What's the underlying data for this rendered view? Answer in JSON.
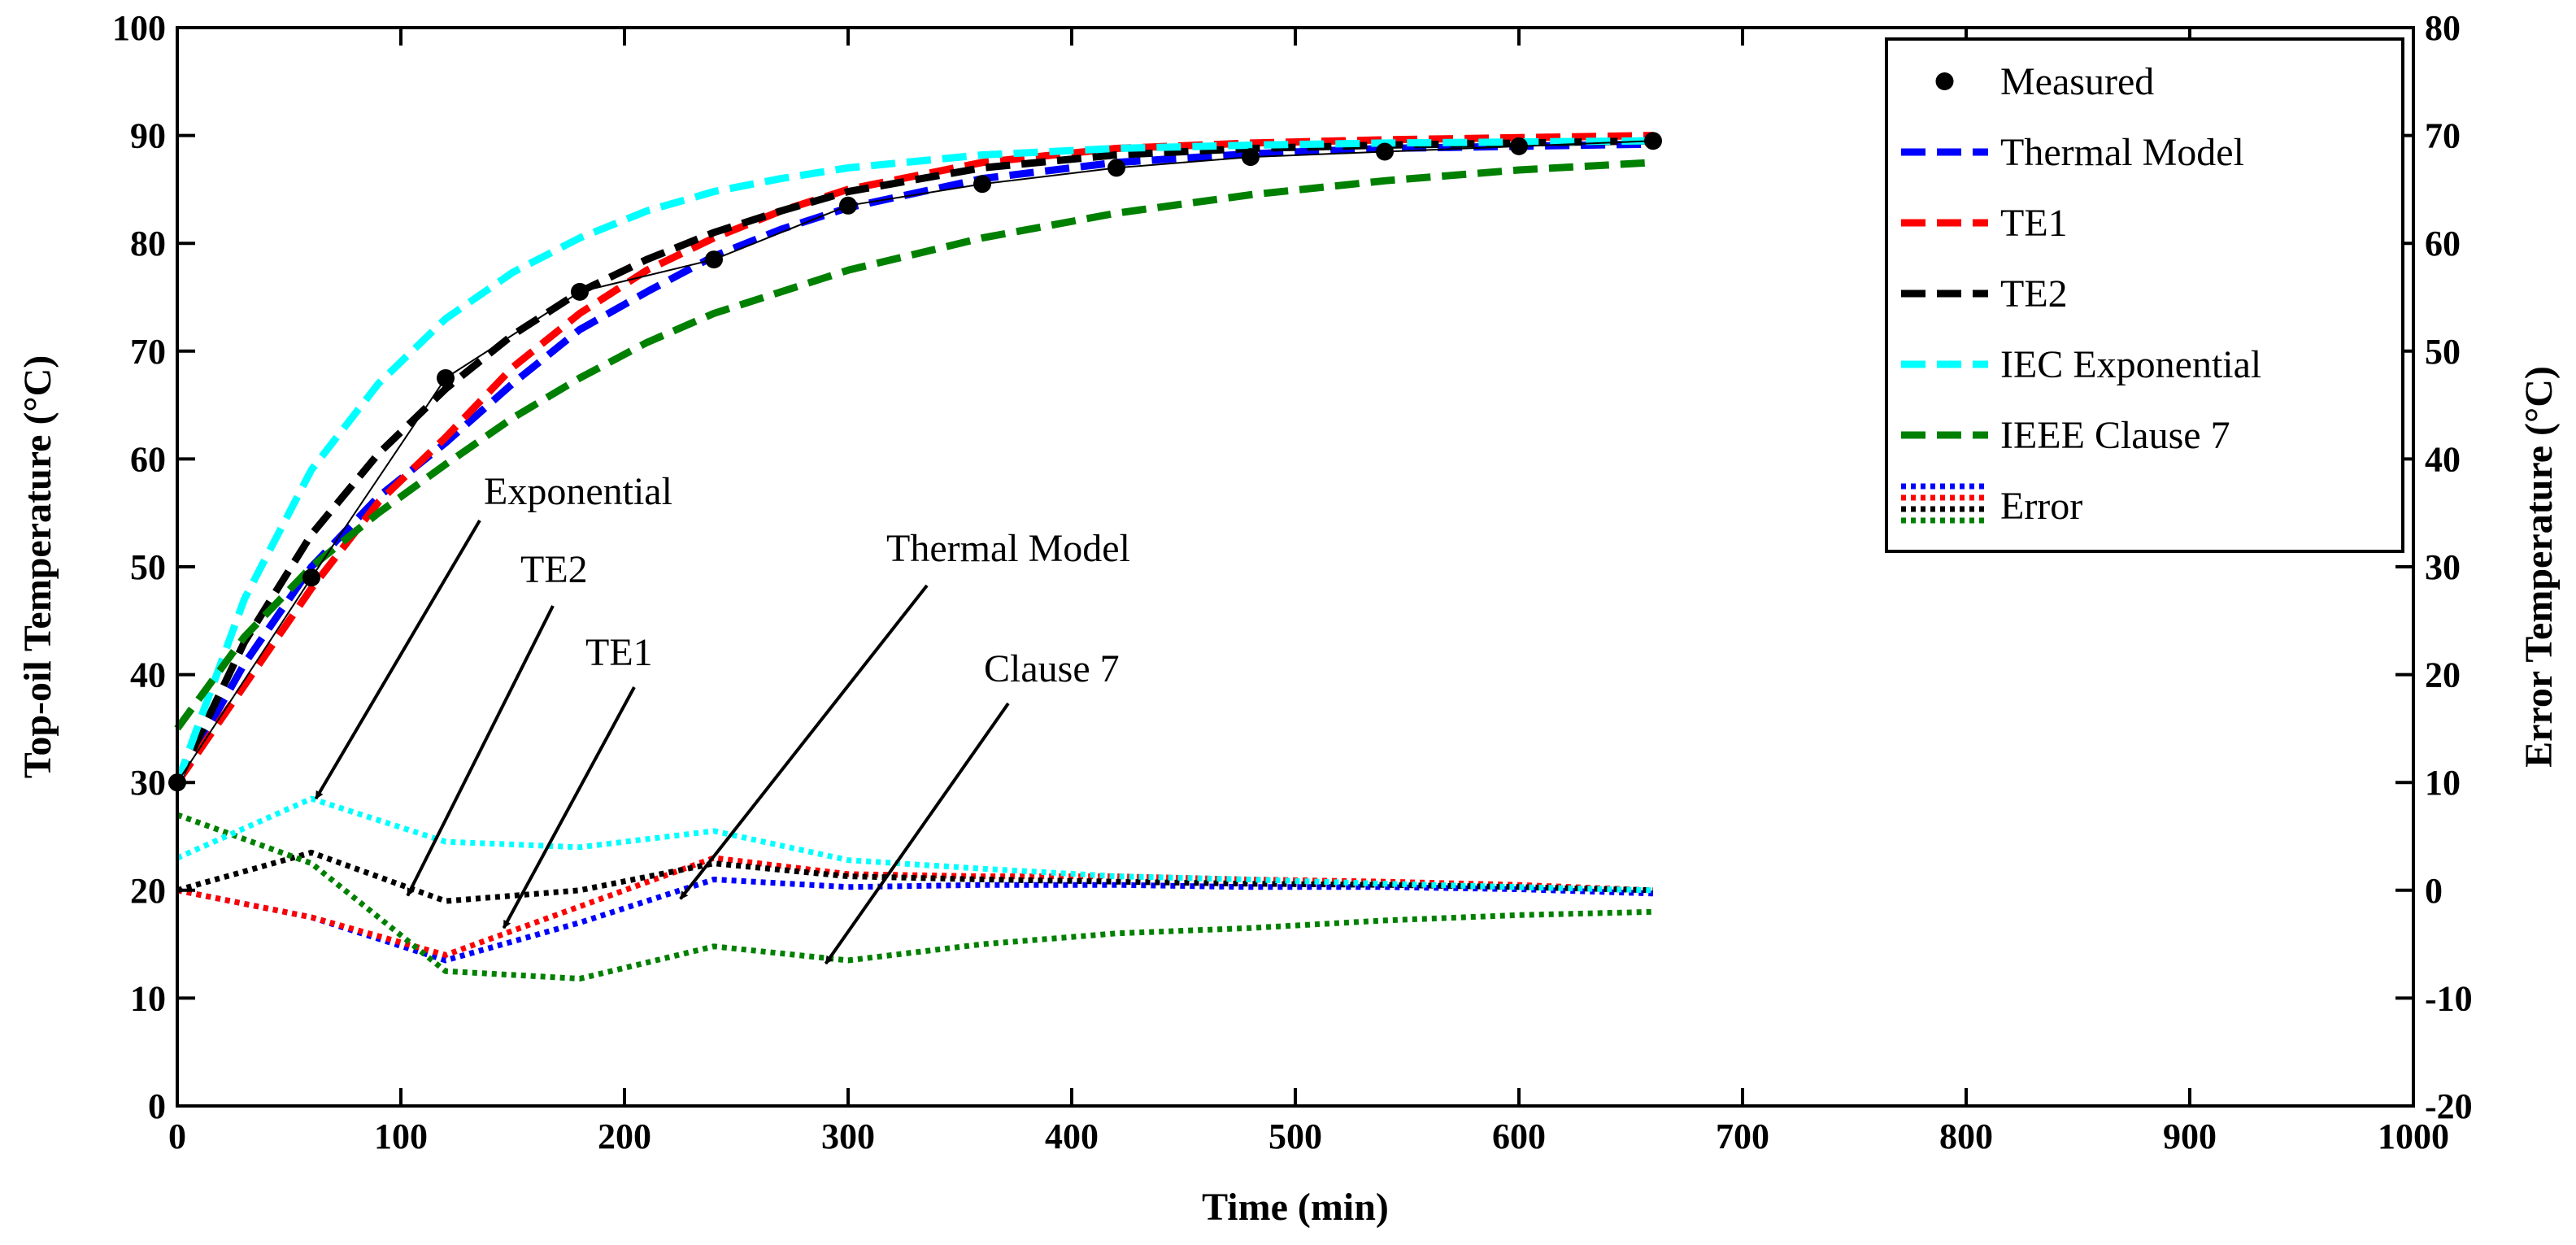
{
  "chart_data": {
    "type": "line",
    "xlabel": "Time (min)",
    "ylabel": "Top-oil Temperature (°C)",
    "y2label": "Error Temperature (°C)",
    "xlim": [
      0,
      1000
    ],
    "ylim": [
      0,
      100
    ],
    "y2lim": [
      -20,
      80
    ],
    "x_ticks": [
      0,
      100,
      200,
      300,
      400,
      500,
      600,
      700,
      800,
      900,
      1000
    ],
    "y_ticks": [
      0,
      10,
      20,
      30,
      40,
      50,
      60,
      70,
      80,
      90,
      100
    ],
    "y2_ticks": [
      -20,
      -10,
      0,
      10,
      20,
      30,
      40,
      50,
      60,
      70,
      80
    ],
    "legend_position": "top-right",
    "legend": [
      "Measured",
      "Thermal Model",
      "TE1",
      "TE2",
      "IEC Exponential",
      "IEEE Clause 7",
      "Error"
    ],
    "measured": {
      "name": "Measured",
      "color": "#000000",
      "x": [
        0,
        60,
        120,
        180,
        240,
        300,
        360,
        420,
        480,
        540,
        600,
        660
      ],
      "y": [
        30,
        49,
        67.5,
        75.5,
        78.5,
        83.5,
        85.5,
        87,
        88,
        88.5,
        89,
        89.5
      ]
    },
    "series": [
      {
        "name": "Thermal Model",
        "color": "#0000ff",
        "style": "dashed",
        "axis": "left",
        "x": [
          0,
          30,
          60,
          90,
          120,
          150,
          180,
          210,
          240,
          270,
          300,
          360,
          420,
          480,
          540,
          600,
          660
        ],
        "y": [
          30,
          41,
          50,
          56.5,
          61.5,
          67,
          72,
          75.5,
          78.8,
          81.3,
          83.3,
          86,
          87.5,
          88.3,
          88.8,
          89,
          89.2
        ]
      },
      {
        "name": "TE1",
        "color": "#ff0000",
        "style": "dashed",
        "axis": "left",
        "x": [
          0,
          30,
          60,
          90,
          120,
          150,
          180,
          210,
          240,
          270,
          300,
          360,
          420,
          480,
          540,
          600,
          660
        ],
        "y": [
          30,
          39,
          48,
          56,
          62,
          68.5,
          73.5,
          77.5,
          80.5,
          83,
          85,
          87.5,
          88.8,
          89.3,
          89.6,
          89.8,
          90
        ]
      },
      {
        "name": "TE2",
        "color": "#000000",
        "style": "dashed",
        "axis": "left",
        "x": [
          0,
          30,
          60,
          90,
          120,
          150,
          180,
          210,
          240,
          270,
          300,
          360,
          420,
          480,
          540,
          600,
          660
        ],
        "y": [
          30,
          43,
          53,
          60.5,
          66.5,
          71.5,
          75.5,
          78.5,
          81,
          83,
          84.8,
          87,
          88.2,
          88.8,
          89.1,
          89.3,
          89.5
        ]
      },
      {
        "name": "IEC Exponential",
        "color": "#00ffff",
        "style": "dashed",
        "axis": "left",
        "x": [
          0,
          30,
          60,
          90,
          120,
          150,
          180,
          210,
          240,
          270,
          300,
          360,
          420,
          480,
          540,
          600,
          660
        ],
        "y": [
          30,
          47,
          59,
          67,
          73,
          77.3,
          80.5,
          83,
          84.8,
          86,
          87,
          88.2,
          88.8,
          89.1,
          89.3,
          89.4,
          89.5
        ]
      },
      {
        "name": "IEEE Clause 7",
        "color": "#008000",
        "style": "dashed",
        "axis": "left",
        "x": [
          0,
          30,
          60,
          90,
          120,
          150,
          180,
          210,
          240,
          270,
          300,
          360,
          420,
          480,
          540,
          600,
          660
        ],
        "y": [
          35,
          43.5,
          50,
          55,
          59.5,
          63.8,
          67.5,
          70.8,
          73.5,
          75.5,
          77.5,
          80.5,
          82.8,
          84.5,
          85.8,
          86.8,
          87.5
        ]
      },
      {
        "name": "Error (Thermal Model)",
        "color": "#0000ff",
        "style": "dotted",
        "axis": "right",
        "x": [
          0,
          60,
          120,
          180,
          240,
          300,
          360,
          420,
          480,
          540,
          600,
          660
        ],
        "y": [
          0,
          -2.5,
          -6.5,
          -3,
          1,
          0.3,
          0.5,
          0.5,
          0.3,
          0.3,
          0.1,
          -0.3
        ]
      },
      {
        "name": "Error (TE1)",
        "color": "#ff0000",
        "style": "dotted",
        "axis": "right",
        "x": [
          0,
          60,
          120,
          180,
          240,
          300,
          360,
          420,
          480,
          540,
          600,
          660
        ],
        "y": [
          0,
          -2.5,
          -6,
          -1.5,
          3,
          1.5,
          1.3,
          1.3,
          1,
          0.8,
          0.5,
          0
        ]
      },
      {
        "name": "Error (TE2)",
        "color": "#000000",
        "style": "dotted",
        "axis": "right",
        "x": [
          0,
          60,
          120,
          180,
          240,
          300,
          360,
          420,
          480,
          540,
          600,
          660
        ],
        "y": [
          0,
          3.5,
          -1,
          0,
          2.5,
          1.3,
          1,
          0.8,
          0.6,
          0.5,
          0.3,
          0
        ]
      },
      {
        "name": "Error (IEEE Clause 7)",
        "color": "#008000",
        "style": "dotted",
        "axis": "right",
        "x": [
          0,
          60,
          120,
          180,
          240,
          300,
          360,
          420,
          480,
          540,
          600,
          660
        ],
        "y": [
          7,
          2.5,
          -7.5,
          -8.2,
          -5.2,
          -6.5,
          -5,
          -4,
          -3.5,
          -2.8,
          -2.3,
          -2
        ]
      },
      {
        "name": "Error (IEC Exponential)",
        "color": "#00ffff",
        "style": "dotted",
        "axis": "right",
        "x": [
          0,
          60,
          120,
          180,
          240,
          300,
          360,
          420,
          480,
          540,
          600,
          660
        ],
        "y": [
          3,
          8.5,
          4.5,
          4,
          5.5,
          2.8,
          2,
          1.3,
          1,
          0.6,
          0.3,
          0
        ]
      }
    ],
    "annotations": [
      {
        "text": "Exponential",
        "x_data": 62,
        "y2_data": 8.5
      },
      {
        "text": "TE2",
        "x_data": 103,
        "y2_data": -0.5
      },
      {
        "text": "TE1",
        "x_data": 146,
        "y2_data": -3.5
      },
      {
        "text": "Thermal Model",
        "x_data": 225,
        "y2_data": -0.8
      },
      {
        "text": "Clause 7",
        "x_data": 290,
        "y2_data": -6.8
      }
    ]
  }
}
